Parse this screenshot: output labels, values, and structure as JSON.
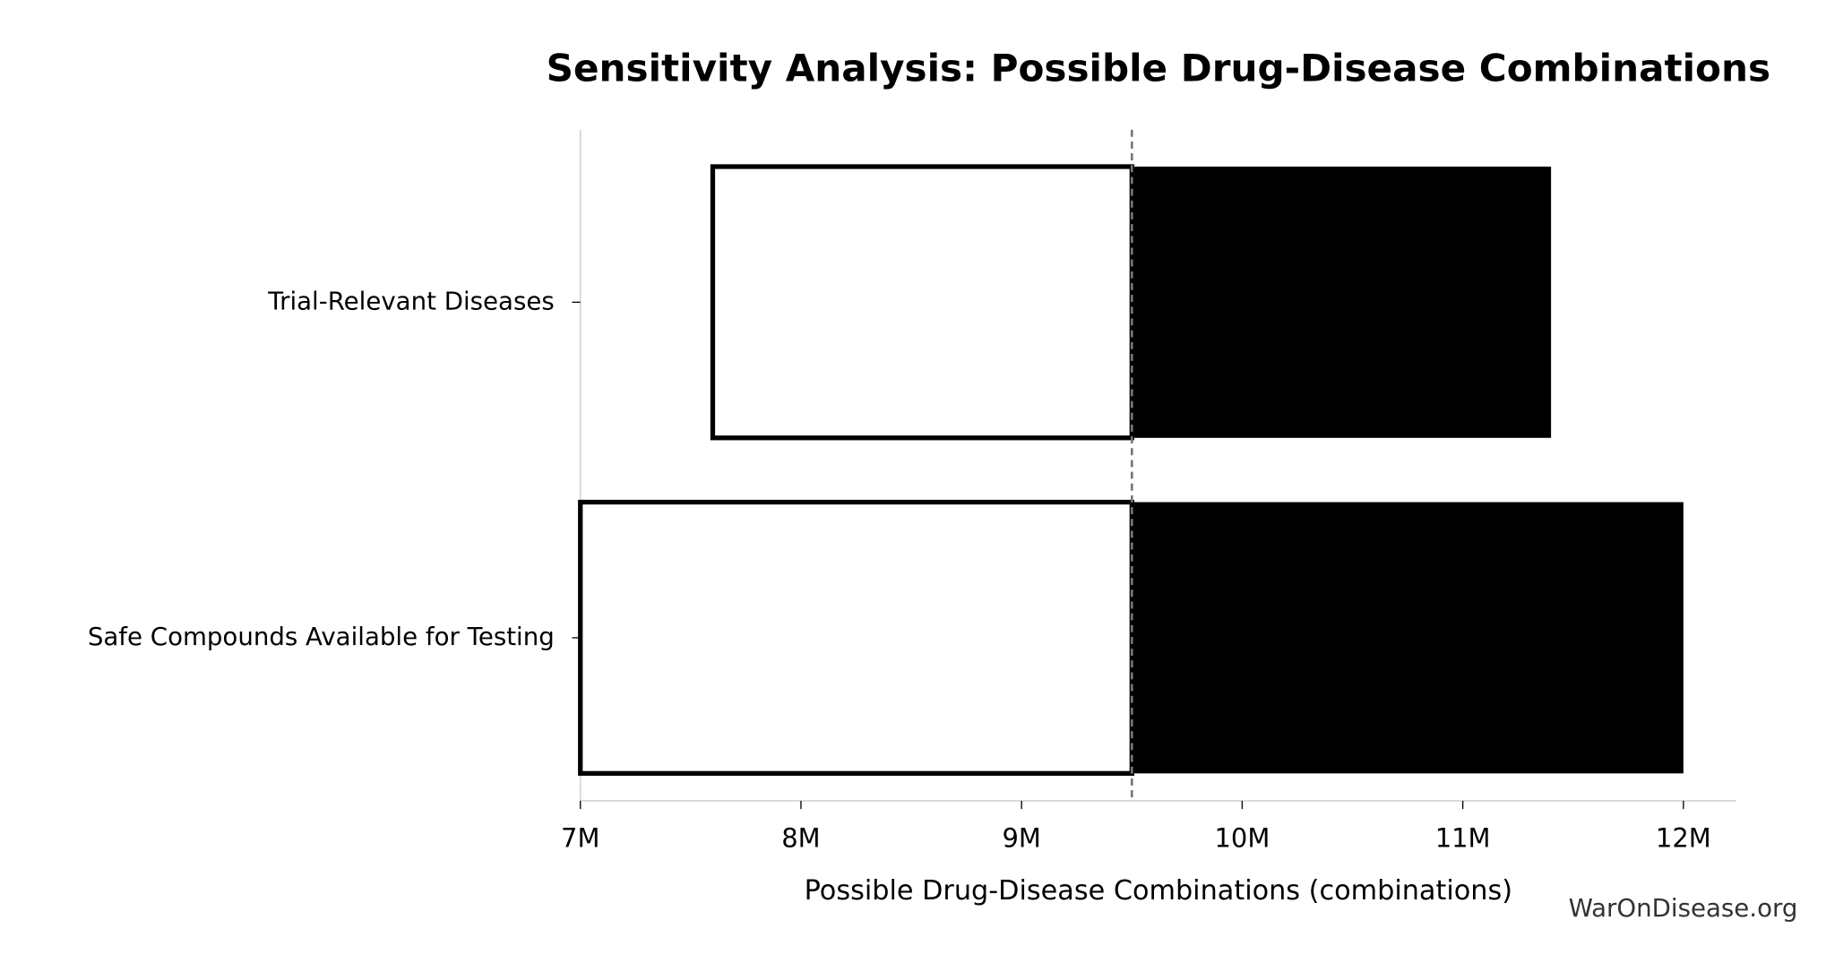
{
  "chart_data": {
    "type": "tornado",
    "title": "Sensitivity Analysis: Possible Drug-Disease Combinations",
    "xlabel": "Possible Drug-Disease Combinations (combinations)",
    "watermark": "WarOnDisease.org",
    "categories": [
      "Trial-Relevant Diseases",
      "Safe Compounds Available for Testing"
    ],
    "baseline": 9500000,
    "low_values": [
      7600000,
      7000000
    ],
    "high_values": [
      11400000,
      12000000
    ],
    "low_color": "#ffffff",
    "high_color": "#000000",
    "xlim": [
      7000000,
      12240000
    ],
    "xticks": [
      {
        "value": 7000000,
        "label": "7M"
      },
      {
        "value": 8000000,
        "label": "8M"
      },
      {
        "value": 9000000,
        "label": "9M"
      },
      {
        "value": 10000000,
        "label": "10M"
      },
      {
        "value": 11000000,
        "label": "11M"
      },
      {
        "value": 12000000,
        "label": "12M"
      }
    ]
  }
}
